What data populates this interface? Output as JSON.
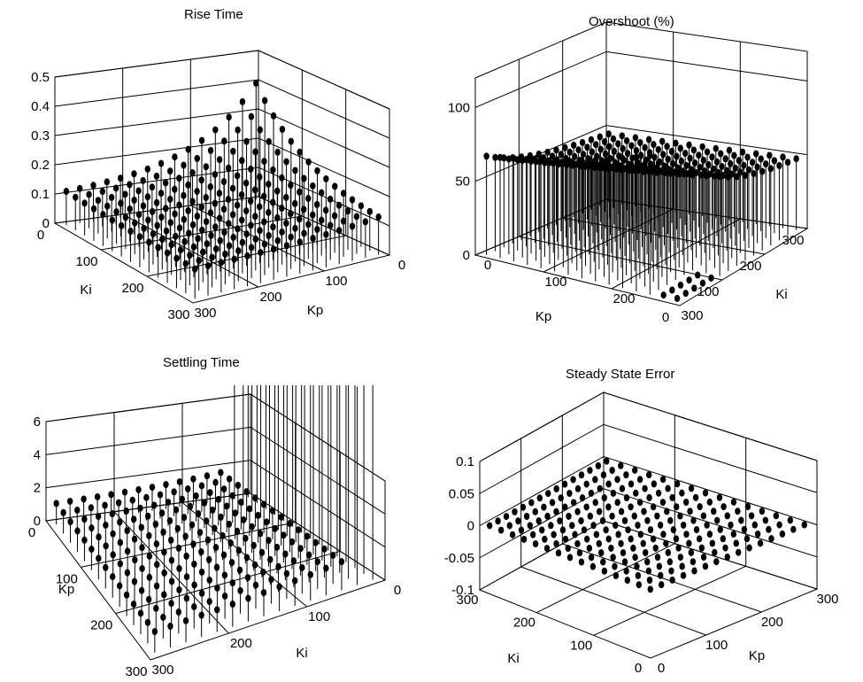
{
  "chart_data": [
    {
      "type": "3d-stem",
      "title": "Rise Time",
      "xlabel": "Kp",
      "ylabel": "Ki",
      "zlabel": "",
      "x_ticks": [
        "0",
        "100",
        "200",
        "300"
      ],
      "y_ticks": [
        "0",
        "100",
        "200",
        "300"
      ],
      "z_ticks": [
        "0",
        "0.1",
        "0.2",
        "0.3",
        "0.4",
        "0.5"
      ],
      "zlim": [
        0,
        0.5
      ],
      "grid": true,
      "grid_points": {
        "kp_values": [
          20,
          40,
          60,
          80,
          100,
          120,
          140,
          160,
          180,
          200,
          220,
          240,
          260,
          280,
          300
        ],
        "ki_values": [
          20,
          40,
          60,
          80,
          100,
          120,
          140,
          160,
          180,
          200,
          220,
          240,
          260,
          280,
          300
        ]
      },
      "surface": {
        "description": "about 0.1 over most of grid, rising to about 0.45 at small Kp with small Ki",
        "base": 0.1,
        "peak": 0.46,
        "peak_at": {
          "Kp": 20,
          "Ki": 20
        }
      }
    },
    {
      "type": "3d-stem",
      "title": "Overshoot (%)",
      "xlabel": "Kp",
      "ylabel": "Ki",
      "zlabel": "",
      "x_ticks": [
        "0",
        "100",
        "200",
        "300"
      ],
      "y_ticks": [
        "0",
        "100",
        "200",
        "300"
      ],
      "z_ticks": [
        "0",
        "50",
        "100"
      ],
      "zlim": [
        0,
        120
      ],
      "grid": true,
      "grid_points": {
        "kp_values": [
          20,
          40,
          60,
          80,
          100,
          120,
          140,
          160,
          180,
          200,
          220,
          240,
          260,
          280,
          300
        ],
        "ki_values": [
          20,
          40,
          60,
          80,
          100,
          120,
          140,
          160,
          180,
          200,
          220,
          240,
          260,
          280,
          300
        ]
      },
      "surface": {
        "description": "about 45-60 over most of grid, near 0 at small Ki, rising to about 115 at large Ki with small Kp",
        "base": 50,
        "peak": 115,
        "low": 0
      }
    },
    {
      "type": "3d-stem",
      "title": "Settling Time",
      "xlabel": "Ki",
      "ylabel": "Kp",
      "zlabel": "",
      "x_ticks": [
        "0",
        "100",
        "200",
        "300"
      ],
      "y_ticks": [
        "0",
        "100",
        "200",
        "300"
      ],
      "z_ticks": [
        "0",
        "2",
        "4",
        "6"
      ],
      "zlim": [
        0,
        6
      ],
      "grid": true,
      "grid_points": {
        "ki_values": [
          20,
          40,
          60,
          80,
          100,
          120,
          140,
          160,
          180,
          200,
          220,
          240,
          260,
          280,
          300
        ],
        "kp_values": [
          20,
          40,
          60,
          80,
          100,
          120,
          140,
          160,
          180,
          200,
          220,
          240,
          260,
          280,
          300
        ]
      },
      "surface": {
        "description": "about 1-2 over most of grid, very large (off scale) at small Ki",
        "base": 1.2,
        "peak": 12,
        "peak_at": {
          "Ki": 20
        }
      }
    },
    {
      "type": "3d-stem",
      "title": "Steady State Error",
      "xlabel": "Kp",
      "ylabel": "Ki",
      "zlabel": "",
      "x_ticks": [
        "0",
        "100",
        "200",
        "300"
      ],
      "y_ticks": [
        "0",
        "100",
        "200",
        "300"
      ],
      "z_ticks": [
        "-0.1",
        "-0.05",
        "0",
        "0.05",
        "0.1"
      ],
      "zlim": [
        -0.1,
        0.1
      ],
      "grid": true,
      "grid_points": {
        "kp_values": [
          20,
          40,
          60,
          80,
          100,
          120,
          140,
          160,
          180,
          200,
          220,
          240,
          260,
          280,
          300
        ],
        "ki_values": [
          20,
          40,
          60,
          80,
          100,
          120,
          140,
          160,
          180,
          200,
          220,
          240,
          260,
          280,
          300
        ]
      },
      "surface": {
        "description": "0 everywhere",
        "base": 0,
        "peak": 0
      }
    }
  ]
}
